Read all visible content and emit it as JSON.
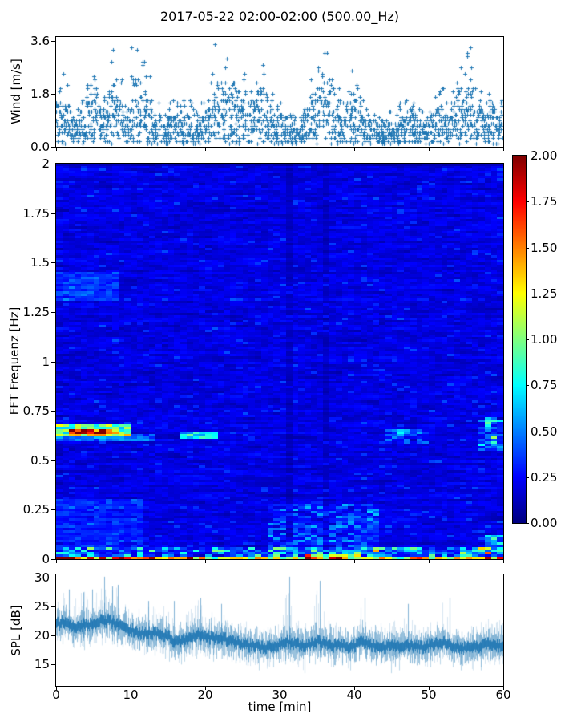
{
  "title": "2017-05-22 02:00-02:00 (500.00_Hz)",
  "colors": {
    "series_blue": "#1f77b4",
    "axis": "#000000",
    "background": "#ffffff",
    "colormap": "jet"
  },
  "chart_data": [
    {
      "type": "scatter",
      "name": "wind-speed",
      "ylabel": "Wind [m/s]",
      "marker": "+",
      "yticks": [
        "0.0",
        "1.8",
        "3.6"
      ],
      "ytick_values": [
        0.0,
        1.8,
        3.6
      ],
      "ylim": [
        0,
        3.75
      ],
      "xlim": [
        0,
        60
      ],
      "points_per_minute": 32,
      "minute_mean": [
        0.9,
        0.8,
        0.5,
        0.6,
        0.9,
        1.0,
        0.7,
        1.2,
        1.0,
        0.6,
        1.3,
        1.1,
        0.9,
        0.6,
        0.4,
        0.6,
        0.7,
        0.6,
        0.5,
        0.6,
        0.8,
        1.2,
        1.3,
        1.0,
        0.8,
        1.0,
        0.9,
        1.1,
        0.7,
        0.5,
        0.6,
        0.5,
        0.4,
        0.6,
        0.9,
        1.1,
        1.3,
        0.8,
        0.6,
        1.0,
        0.9,
        0.6,
        0.5,
        0.4,
        0.5,
        0.4,
        0.6,
        0.7,
        0.5,
        0.5,
        0.7,
        0.8,
        0.6,
        0.9,
        1.1,
        1.3,
        0.8,
        0.6,
        0.8,
        0.7
      ],
      "minute_max": [
        2.6,
        2.2,
        1.3,
        1.6,
        2.1,
        2.6,
        1.8,
        3.3,
        2.4,
        1.4,
        3.5,
        2.9,
        2.5,
        1.5,
        1.2,
        1.6,
        1.5,
        1.7,
        1.5,
        1.5,
        2.3,
        3.6,
        3.0,
        2.4,
        2.0,
        2.6,
        2.2,
        2.9,
        1.8,
        1.4,
        1.5,
        1.2,
        1.0,
        1.4,
        2.4,
        2.7,
        3.4,
        2.1,
        1.6,
        2.7,
        2.2,
        1.6,
        1.2,
        1.0,
        1.3,
        1.1,
        1.5,
        1.6,
        1.3,
        1.2,
        1.8,
        2.1,
        1.6,
        2.3,
        2.8,
        3.4,
        2.0,
        1.5,
        1.8,
        1.6
      ]
    },
    {
      "type": "heatmap",
      "name": "fft-spectrogram",
      "ylabel": "FFT Frequenz [Hz]",
      "yticks": [
        "2",
        "1.75",
        "1.5",
        "1.25",
        "1",
        "0.75",
        "0.5",
        "0.25",
        "0"
      ],
      "ytick_values": [
        2,
        1.75,
        1.5,
        1.25,
        1,
        0.75,
        0.5,
        0.25,
        0
      ],
      "ylim": [
        0,
        2
      ],
      "xlim": [
        0,
        60
      ],
      "clim": [
        0,
        2
      ],
      "colorbar_ticks": [
        "2.00",
        "1.75",
        "1.50",
        "1.25",
        "1.00",
        "0.75",
        "0.50",
        "0.25",
        "0.00"
      ],
      "colorbar_tick_values": [
        2,
        1.75,
        1.5,
        1.25,
        1,
        0.75,
        0.5,
        0.25,
        0
      ],
      "base_level": 0.16,
      "grid_cols": 72,
      "grid_rows": 164,
      "features": [
        {
          "t0": 0,
          "t1": 10,
          "f0": 0.62,
          "f1": 0.68,
          "amp": 0.75
        },
        {
          "t0": 1.5,
          "t1": 8.5,
          "f0": 0.638,
          "f1": 0.664,
          "amp": 0.85
        },
        {
          "t0": 0,
          "t1": 13,
          "f0": 0.6,
          "f1": 0.63,
          "amp": 0.25
        },
        {
          "t0": 17,
          "t1": 21.5,
          "f0": 0.612,
          "f1": 0.648,
          "amp": 0.55
        },
        {
          "t0": 44,
          "t1": 50,
          "f0": 0.58,
          "f1": 0.66,
          "amp": 0.2,
          "speckle": true
        },
        {
          "t0": 57,
          "t1": 60,
          "f0": 0.55,
          "f1": 0.72,
          "amp": 0.3,
          "speckle": true
        },
        {
          "t0": 0,
          "t1": 60,
          "f0": 0,
          "f1": 0.013,
          "amp": 1.0
        },
        {
          "t0": 0,
          "t1": 2.2,
          "f0": 0,
          "f1": 0.013,
          "amp": 0.8
        },
        {
          "t0": 2.2,
          "t1": 20,
          "f0": 0,
          "f1": 0.013,
          "amp": 0.4
        },
        {
          "t0": 33,
          "t1": 39,
          "f0": 0,
          "f1": 0.022,
          "amp": 0.5
        },
        {
          "t0": 56,
          "t1": 60,
          "f0": 0,
          "f1": 0.015,
          "amp": 0.25
        },
        {
          "t0": 0,
          "t1": 60,
          "f0": 0.013,
          "f1": 0.06,
          "amp": 0.3,
          "speckle": true
        },
        {
          "t0": 28,
          "t1": 43,
          "f0": 0.013,
          "f1": 0.28,
          "amp": 0.16,
          "speckle": true
        },
        {
          "t0": 0,
          "t1": 8,
          "f0": 1.3,
          "f1": 1.45,
          "amp": 0.16
        },
        {
          "t0": 0,
          "t1": 12,
          "f0": 0.05,
          "f1": 0.3,
          "amp": 0.1
        },
        {
          "t0": 57,
          "t1": 60,
          "f0": 0.02,
          "f1": 0.12,
          "amp": 0.28,
          "speckle": true
        }
      ],
      "dark_stripes": [
        {
          "t0": 30.8,
          "t1": 31.7
        },
        {
          "t0": 35.7,
          "t1": 36.6
        }
      ]
    },
    {
      "type": "line",
      "name": "sound-pressure-level",
      "ylabel": "SPL [dB]",
      "xlabel": "time [min]",
      "yticks": [
        "15",
        "20",
        "25",
        "30"
      ],
      "ytick_values": [
        15,
        20,
        25,
        30
      ],
      "xticks": [
        "0",
        "10",
        "20",
        "30",
        "40",
        "50",
        "60"
      ],
      "xtick_values": [
        0,
        10,
        20,
        30,
        40,
        50,
        60
      ],
      "ylim": [
        11.3,
        30.6
      ],
      "xlim": [
        0,
        60
      ],
      "minute_mean": [
        22.0,
        22.3,
        21.6,
        21.6,
        22.0,
        21.8,
        22.5,
        22.6,
        22.0,
        21.4,
        21.0,
        20.5,
        20.3,
        20.5,
        20.2,
        19.8,
        18.8,
        19.2,
        19.5,
        20.4,
        19.8,
        19.5,
        19.8,
        19.2,
        18.8,
        18.5,
        18.3,
        18.2,
        18.0,
        18.2,
        18.5,
        19.0,
        18.5,
        18.3,
        18.5,
        19.0,
        18.6,
        18.2,
        18.5,
        18.0,
        18.3,
        19.0,
        18.5,
        18.2,
        18.0,
        18.3,
        18.0,
        18.5,
        18.2,
        18.0,
        18.3,
        18.5,
        18.8,
        18.3,
        18.0,
        17.8,
        18.0,
        18.2,
        18.5,
        18.3
      ],
      "minute_max": [
        26.5,
        28.0,
        25.5,
        27.5,
        28.0,
        26.5,
        30.2,
        28.5,
        28.8,
        26.0,
        25.5,
        25.0,
        26.0,
        25.0,
        25.5,
        26.0,
        23.5,
        24.0,
        24.5,
        26.5,
        25.0,
        24.0,
        25.5,
        23.5,
        23.0,
        23.0,
        22.5,
        23.0,
        22.0,
        22.5,
        23.0,
        30.2,
        23.5,
        22.5,
        23.0,
        29.5,
        24.0,
        22.5,
        23.0,
        22.0,
        22.5,
        26.5,
        23.0,
        22.5,
        22.0,
        23.0,
        22.0,
        25.5,
        22.5,
        22.0,
        22.5,
        23.0,
        26.5,
        23.0,
        22.0,
        21.5,
        22.0,
        22.5,
        23.5,
        23.0
      ],
      "minute_min": [
        18.5,
        19.0,
        18.0,
        17.5,
        18.0,
        17.0,
        18.0,
        18.5,
        18.0,
        17.5,
        17.0,
        16.5,
        16.0,
        16.5,
        16.0,
        15.5,
        15.0,
        15.5,
        16.0,
        16.5,
        16.0,
        15.5,
        16.0,
        15.5,
        15.0,
        14.5,
        14.5,
        14.0,
        14.0,
        14.5,
        15.0,
        15.5,
        15.0,
        13.5,
        15.0,
        15.5,
        15.0,
        14.5,
        15.0,
        14.0,
        14.5,
        15.5,
        15.0,
        14.5,
        13.5,
        14.5,
        14.0,
        15.0,
        14.5,
        14.0,
        14.5,
        15.0,
        15.0,
        14.5,
        14.0,
        13.8,
        14.0,
        14.5,
        15.0,
        14.8
      ]
    }
  ]
}
